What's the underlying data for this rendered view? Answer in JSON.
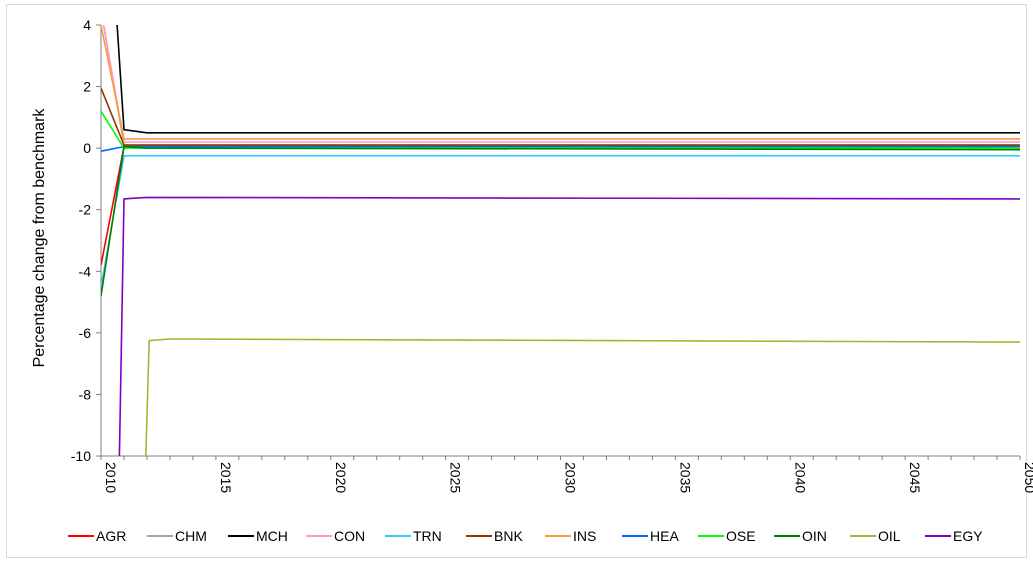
{
  "chart_data": {
    "type": "line",
    "title": "",
    "xlabel": "",
    "ylabel": "Percentage change from benchmark",
    "xlim": [
      2010,
      2050
    ],
    "ylim": [
      -10,
      4
    ],
    "x_ticks": [
      "2010",
      "2015",
      "2020",
      "2025",
      "2030",
      "2035",
      "2040",
      "2045",
      "2050"
    ],
    "y_ticks": [
      "4",
      "2",
      "0",
      "-2",
      "-4",
      "-6",
      "-8",
      "-10"
    ],
    "grid": false,
    "legend_position": "bottom",
    "series": [
      {
        "name": "AGR",
        "color": "#ff0000",
        "points": [
          [
            2010,
            -3.8
          ],
          [
            2011,
            0.05
          ],
          [
            2050,
            0.05
          ]
        ]
      },
      {
        "name": "CHM",
        "color": "#a6a6a6",
        "points": [
          [
            2010,
            4.5
          ],
          [
            2011,
            0.1
          ],
          [
            2050,
            0.1
          ]
        ]
      },
      {
        "name": "MCH",
        "color": "#000000",
        "points": [
          [
            2010,
            4.5
          ],
          [
            2010.7,
            4.0
          ],
          [
            2011,
            0.6
          ],
          [
            2012,
            0.5
          ],
          [
            2050,
            0.5
          ]
        ]
      },
      {
        "name": "CON",
        "color": "#ff99cc",
        "points": [
          [
            2010,
            4.5
          ],
          [
            2011,
            0.2
          ],
          [
            2050,
            0.2
          ]
        ]
      },
      {
        "name": "TRN",
        "color": "#33ccff",
        "points": [
          [
            2010,
            -4.5
          ],
          [
            2011,
            -0.25
          ],
          [
            2050,
            -0.25
          ]
        ]
      },
      {
        "name": "BNK",
        "color": "#993300",
        "points": [
          [
            2010,
            1.95
          ],
          [
            2011,
            0.1
          ],
          [
            2050,
            0.1
          ]
        ]
      },
      {
        "name": "INS",
        "color": "#ff9933",
        "points": [
          [
            2010,
            4.0
          ],
          [
            2011,
            0.3
          ],
          [
            2050,
            0.3
          ]
        ]
      },
      {
        "name": "HEA",
        "color": "#0066ff",
        "points": [
          [
            2010,
            -0.1
          ],
          [
            2011,
            0.05
          ],
          [
            2050,
            0.05
          ]
        ]
      },
      {
        "name": "OSE",
        "color": "#00ff00",
        "points": [
          [
            2010,
            1.2
          ],
          [
            2011,
            0.0
          ],
          [
            2050,
            0.0
          ]
        ]
      },
      {
        "name": "OIN",
        "color": "#008000",
        "points": [
          [
            2010,
            -4.8
          ],
          [
            2011,
            0.05
          ],
          [
            2012,
            0.0
          ],
          [
            2050,
            -0.05
          ]
        ]
      },
      {
        "name": "OIL",
        "color": "#99bb33",
        "points": [
          [
            2011.95,
            -10
          ],
          [
            2012.1,
            -6.25
          ],
          [
            2013,
            -6.2
          ],
          [
            2050,
            -6.3
          ]
        ]
      },
      {
        "name": "EGY",
        "color": "#8000c0",
        "points": [
          [
            2010.8,
            -10
          ],
          [
            2011,
            -1.65
          ],
          [
            2012,
            -1.6
          ],
          [
            2050,
            -1.65
          ]
        ]
      }
    ]
  }
}
